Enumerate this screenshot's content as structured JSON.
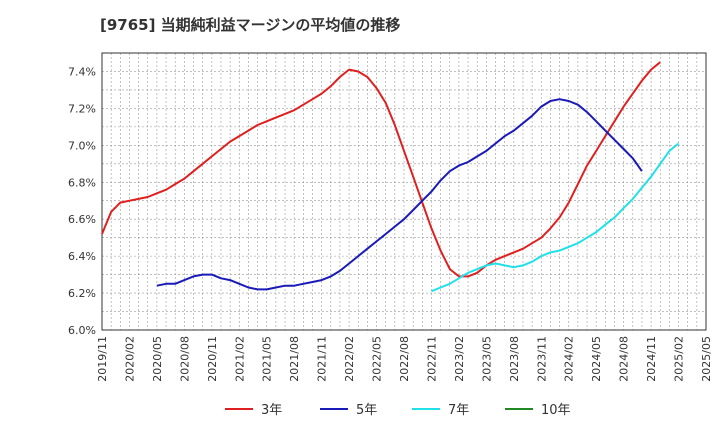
{
  "chart_data": {
    "type": "line",
    "title": "[9765]  当期純利益マージンの平均値の推移",
    "x_categories": [
      "2019/11",
      "2020/02",
      "2020/05",
      "2020/08",
      "2020/11",
      "2021/02",
      "2021/05",
      "2021/08",
      "2021/11",
      "2022/02",
      "2022/05",
      "2022/08",
      "2022/11",
      "2023/02",
      "2023/05",
      "2023/08",
      "2023/11",
      "2024/02",
      "2024/05",
      "2024/08",
      "2024/11",
      "2025/02",
      "2025/05"
    ],
    "y_ticks": [
      "6.0%",
      "6.2%",
      "6.4%",
      "6.6%",
      "6.8%",
      "7.0%",
      "7.2%",
      "7.4%"
    ],
    "ylim": [
      6.0,
      7.5
    ],
    "grid": true,
    "legend_position": "bottom",
    "series": [
      {
        "name": "3年",
        "color": "#e02020",
        "start_index": 0,
        "values": [
          6.52,
          6.64,
          6.69,
          6.7,
          6.71,
          6.72,
          6.74,
          6.76,
          6.79,
          6.82,
          6.86,
          6.9,
          6.94,
          6.98,
          7.02,
          7.05,
          7.08,
          7.11,
          7.13,
          7.15,
          7.17,
          7.19,
          7.22,
          7.25,
          7.28,
          7.32,
          7.37,
          7.41,
          7.4,
          7.37,
          7.31,
          7.23,
          7.11,
          6.97,
          6.83,
          6.69,
          6.55,
          6.43,
          6.33,
          6.29,
          6.29,
          6.31,
          6.35,
          6.38,
          6.4,
          6.42,
          6.44,
          6.47,
          6.5,
          6.55,
          6.61,
          6.69,
          6.79,
          6.89,
          6.97,
          7.05,
          7.13,
          7.21,
          7.28,
          7.35,
          7.41,
          7.45
        ]
      },
      {
        "name": "5年",
        "color": "#1a1ab8",
        "start_index": 6,
        "values": [
          6.24,
          6.25,
          6.25,
          6.27,
          6.29,
          6.3,
          6.3,
          6.28,
          6.27,
          6.25,
          6.23,
          6.22,
          6.22,
          6.23,
          6.24,
          6.24,
          6.25,
          6.26,
          6.27,
          6.29,
          6.32,
          6.36,
          6.4,
          6.44,
          6.48,
          6.52,
          6.56,
          6.6,
          6.65,
          6.7,
          6.75,
          6.81,
          6.86,
          6.89,
          6.91,
          6.94,
          6.97,
          7.01,
          7.05,
          7.08,
          7.12,
          7.16,
          7.21,
          7.24,
          7.25,
          7.24,
          7.22,
          7.18,
          7.13,
          7.08,
          7.03,
          6.98,
          6.93,
          6.86
        ]
      },
      {
        "name": "7年",
        "color": "#22e0e8",
        "start_index": 36,
        "values": [
          6.21,
          6.23,
          6.25,
          6.28,
          6.31,
          6.33,
          6.35,
          6.36,
          6.35,
          6.34,
          6.35,
          6.37,
          6.4,
          6.42,
          6.43,
          6.45,
          6.47,
          6.5,
          6.53,
          6.57,
          6.61,
          6.66,
          6.71,
          6.77,
          6.83,
          6.9,
          6.97,
          7.01
        ]
      },
      {
        "name": "10年",
        "color": "#228822",
        "start_index": 0,
        "values": []
      }
    ]
  }
}
